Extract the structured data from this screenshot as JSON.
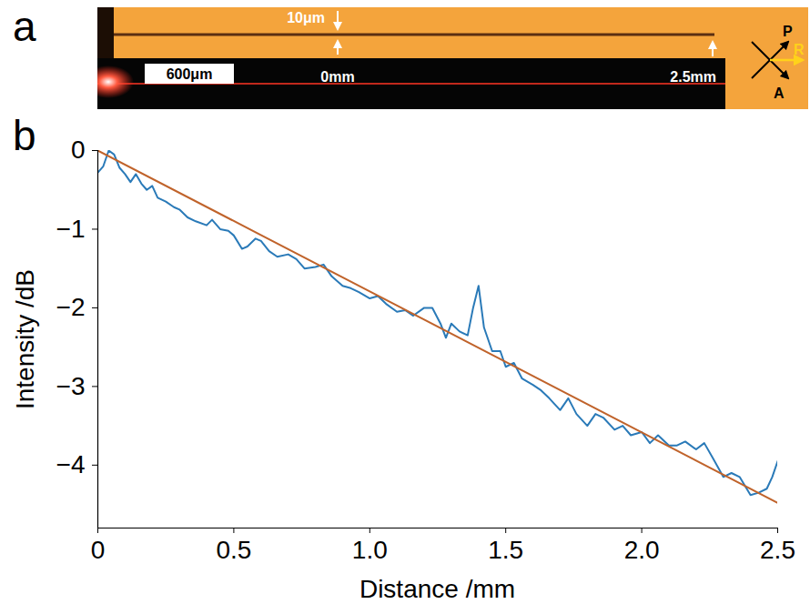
{
  "image_panel": {
    "panel_label": "a",
    "width_label": "10μm",
    "scale_bar_label": "600μm",
    "start_label": "0mm",
    "end_label": "2.5mm",
    "polarization": {
      "polarizer": "P",
      "analyzer": "A",
      "reference": "R"
    }
  },
  "chart_data": {
    "panel_label": "b",
    "type": "line",
    "x_label": "Distance /mm",
    "y_label": "Intensity /dB",
    "xlim": [
      0,
      2.5
    ],
    "ylim": [
      -4.8,
      0
    ],
    "xticks": [
      0,
      0.5,
      {
        "value": 1,
        "label": "1.0"
      },
      1.5,
      {
        "value": 2,
        "label": "2.0"
      },
      2.5
    ],
    "yticks": [
      0,
      -1,
      -2,
      -3,
      -4
    ],
    "grid": false,
    "series": [
      {
        "color": "#2a7ab8",
        "line_style": "solid",
        "x": [
          0,
          0.02,
          0.04,
          0.06,
          0.08,
          0.1,
          0.12,
          0.14,
          0.16,
          0.18,
          0.2,
          0.22,
          0.25,
          0.28,
          0.3,
          0.33,
          0.36,
          0.4,
          0.42,
          0.45,
          0.48,
          0.5,
          0.53,
          0.55,
          0.58,
          0.6,
          0.63,
          0.66,
          0.7,
          0.73,
          0.76,
          0.8,
          0.83,
          0.86,
          0.9,
          0.93,
          0.96,
          1.0,
          1.03,
          1.06,
          1.1,
          1.13,
          1.16,
          1.2,
          1.23,
          1.26,
          1.28,
          1.3,
          1.33,
          1.36,
          1.38,
          1.4,
          1.42,
          1.45,
          1.48,
          1.5,
          1.53,
          1.56,
          1.6,
          1.63,
          1.66,
          1.7,
          1.73,
          1.76,
          1.8,
          1.83,
          1.86,
          1.9,
          1.93,
          1.96,
          2.0,
          2.03,
          2.06,
          2.1,
          2.13,
          2.16,
          2.2,
          2.23,
          2.26,
          2.3,
          2.33,
          2.36,
          2.4,
          2.43,
          2.46,
          2.48,
          2.5
        ],
        "values": [
          -0.28,
          -0.2,
          0.0,
          -0.05,
          -0.22,
          -0.3,
          -0.4,
          -0.3,
          -0.42,
          -0.5,
          -0.45,
          -0.6,
          -0.65,
          -0.72,
          -0.75,
          -0.85,
          -0.9,
          -0.95,
          -0.88,
          -1.0,
          -1.02,
          -1.08,
          -1.25,
          -1.22,
          -1.12,
          -1.15,
          -1.28,
          -1.35,
          -1.32,
          -1.38,
          -1.5,
          -1.48,
          -1.45,
          -1.6,
          -1.72,
          -1.75,
          -1.8,
          -1.88,
          -1.85,
          -1.95,
          -2.05,
          -2.03,
          -2.1,
          -2.0,
          -2.0,
          -2.2,
          -2.38,
          -2.2,
          -2.3,
          -2.35,
          -2.0,
          -1.72,
          -2.25,
          -2.55,
          -2.55,
          -2.75,
          -2.7,
          -2.9,
          -2.98,
          -3.05,
          -3.15,
          -3.3,
          -3.15,
          -3.35,
          -3.5,
          -3.35,
          -3.4,
          -3.55,
          -3.5,
          -3.62,
          -3.58,
          -3.72,
          -3.62,
          -3.75,
          -3.75,
          -3.7,
          -3.8,
          -3.72,
          -3.9,
          -4.15,
          -4.1,
          -4.15,
          -4.38,
          -4.35,
          -4.3,
          -4.15,
          -3.95
        ]
      },
      {
        "color": "#c0632b",
        "line_style": "solid",
        "x": [
          0,
          2.5
        ],
        "values": [
          0,
          -4.48
        ]
      }
    ]
  }
}
